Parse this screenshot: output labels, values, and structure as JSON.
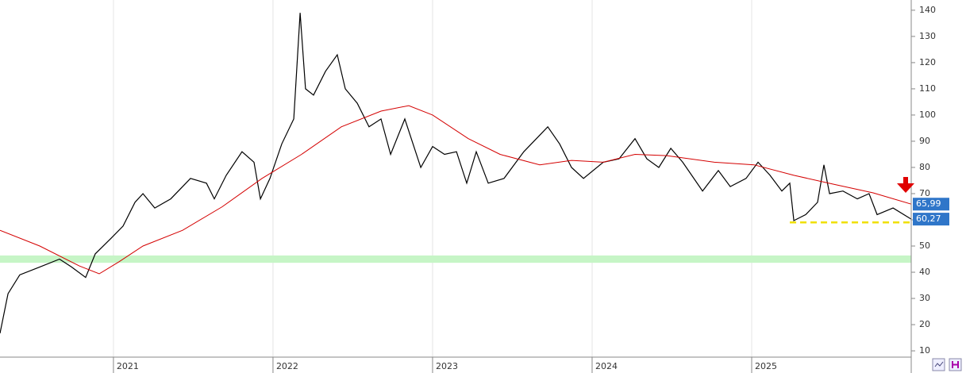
{
  "chart_data": {
    "type": "line",
    "xlim": [
      2020.289,
      2026.0
    ],
    "xticks": [
      2021,
      2022,
      2023,
      2024,
      2025
    ],
    "ylim": [
      7.6,
      143.9
    ],
    "yticks": [
      10,
      20,
      30,
      40,
      50,
      60,
      70,
      80,
      90,
      100,
      110,
      120,
      130,
      140
    ],
    "grid": true,
    "series": [
      {
        "color": "#000000",
        "x": [
          2020.289,
          2020.339,
          2020.413,
          2020.538,
          2020.662,
          2020.737,
          2020.826,
          2020.886,
          2020.986,
          2021.06,
          2021.135,
          2021.185,
          2021.259,
          2021.359,
          2021.483,
          2021.583,
          2021.632,
          2021.707,
          2021.806,
          2021.881,
          2021.921,
          2021.981,
          2022.055,
          2022.13,
          2022.17,
          2022.204,
          2022.254,
          2022.329,
          2022.403,
          2022.453,
          2022.528,
          2022.602,
          2022.677,
          2022.737,
          2022.826,
          2022.926,
          2023.0,
          2023.075,
          2023.15,
          2023.214,
          2023.274,
          2023.349,
          2023.448,
          2023.572,
          2023.722,
          2023.796,
          2023.871,
          2023.946,
          2024.07,
          2024.169,
          2024.269,
          2024.343,
          2024.418,
          2024.493,
          2024.568,
          2024.692,
          2024.791,
          2024.866,
          2024.965,
          2025.04,
          2025.115,
          2025.189,
          2025.239,
          2025.264,
          2025.339,
          2025.413,
          2025.453,
          2025.488,
          2025.572,
          2025.662,
          2025.736,
          2025.786,
          2025.886,
          2026.0
        ],
        "values": [
          16.7,
          31.8,
          39,
          42,
          45,
          42,
          38,
          47,
          53,
          57.6,
          66.7,
          70,
          64.5,
          68,
          75.8,
          74,
          68,
          77,
          86,
          82,
          68,
          75.8,
          89,
          98.5,
          139,
          110,
          107.6,
          116.7,
          123,
          110,
          104.5,
          95.5,
          98.5,
          85,
          98.5,
          80,
          88,
          85,
          86,
          74,
          86,
          74,
          75.8,
          86,
          95.5,
          89,
          80,
          75.8,
          82,
          83.3,
          91,
          83.3,
          80,
          87.3,
          82,
          71,
          78.8,
          72.7,
          75.8,
          82,
          77,
          71,
          74,
          59.7,
          62,
          66.7,
          81,
          70,
          71,
          68,
          70,
          62,
          64.5,
          60.27
        ],
        "end_label": "60,27"
      },
      {
        "color": "#d40000",
        "x": [
          2020.289,
          2020.538,
          2020.786,
          2020.911,
          2021.035,
          2021.185,
          2021.433,
          2021.682,
          2021.931,
          2022.179,
          2022.428,
          2022.677,
          2022.851,
          2023.0,
          2023.224,
          2023.423,
          2023.672,
          2023.871,
          2024.07,
          2024.269,
          2024.468,
          2024.766,
          2025.015,
          2025.264,
          2025.513,
          2025.761,
          2026.0
        ],
        "values": [
          56,
          50,
          42.4,
          39.4,
          44,
          50,
          56,
          65,
          75.8,
          85,
          95.5,
          101.5,
          103.6,
          100,
          91,
          85,
          81,
          82.7,
          82,
          85,
          84.5,
          82,
          81,
          77,
          73.6,
          70.3,
          65.99
        ],
        "end_label": "65,99"
      }
    ],
    "zones": [
      {
        "from": 43.6,
        "to": 46.4,
        "color": "#c6f5c6"
      }
    ],
    "levels": [
      {
        "value": 59,
        "from": 2025.239,
        "to": 2026.0,
        "color": "#f0e000"
      }
    ]
  }
}
